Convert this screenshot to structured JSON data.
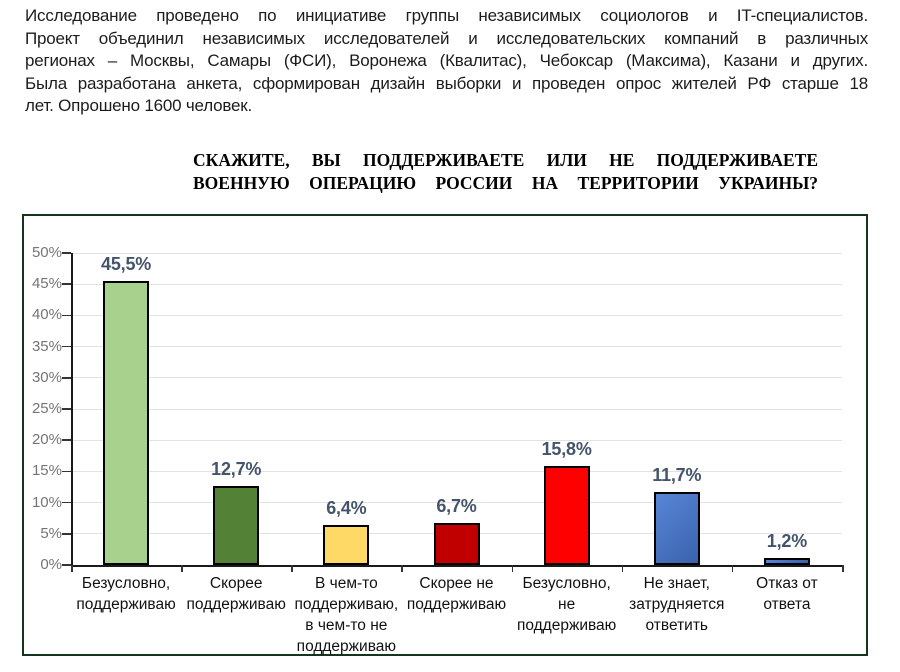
{
  "intro": {
    "lines": [
      "Исследование проведено по инициативе группы независимых социологов и IT-специалистов.",
      "Проект объединил независимых исследователей и исследовательских компаний в различных",
      "регионах – Москвы, Самары (ФСИ), Воронежа (Квалитас), Чебоксар (Максима), Казани и других.",
      "Была разработана анкета, сформирован дизайн выборки и проведен опрос жителей РФ старше 18",
      "лет. Опрошено 1600 человек."
    ]
  },
  "question": {
    "lines": [
      "СКАЖИТЕ, ВЫ ПОДДЕРЖИВАЕТЕ ИЛИ НЕ ПОДДЕРЖИВАЕТЕ",
      "ВОЕННУЮ ОПЕРАЦИЮ РОССИИ НА ТЕРРИТОРИИ УКРАИНЫ?"
    ]
  },
  "chart_data": {
    "type": "bar",
    "title": "СКАЖИТЕ, ВЫ ПОДДЕРЖИВАЕТЕ ИЛИ НЕ ПОДДЕРЖИВАЕТЕ ВОЕННУЮ ОПЕРАЦИЮ РОССИИ НА ТЕРРИТОРИИ УКРАИНЫ?",
    "categories": [
      "Безусловно, поддерживаю",
      "Скорее поддерживаю",
      "В чем-то поддерживаю, в чем-то не поддерживаю",
      "Скорее не поддерживаю",
      "Безусловно, не поддерживаю",
      "Не знает, затрудняется ответить",
      "Отказ от ответа"
    ],
    "values": [
      45.5,
      12.7,
      6.4,
      6.7,
      15.8,
      11.7,
      1.2
    ],
    "value_labels": [
      "45,5%",
      "12,7%",
      "6,4%",
      "6,7%",
      "15,8%",
      "11,7%",
      "1,2%"
    ],
    "bar_colors": [
      "#A9D18E",
      "#538135",
      "#FFD966",
      "#C00000",
      "#FF0000",
      [
        "#5886D6",
        "#3A62AC"
      ],
      [
        "#5886D6",
        "#3A62AC"
      ]
    ],
    "bar_border_color": "#000000",
    "value_label_color": "#44546A",
    "axis_tick_label_color": "#757575",
    "grid_color": "#E2E2E2",
    "grid": true,
    "legend": false,
    "xlabel": "",
    "ylabel": "",
    "ylim": [
      0,
      50
    ],
    "ytick_step": 5,
    "ytick_suffix": "%"
  }
}
